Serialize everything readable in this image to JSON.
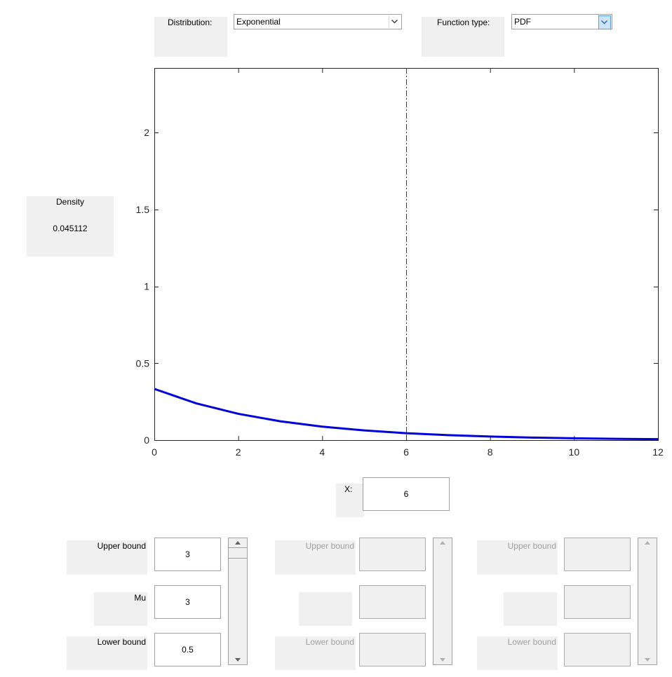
{
  "header": {
    "distribution_label": "Distribution:",
    "distribution_value": "Exponential",
    "function_type_label": "Function type:",
    "function_type_value": "PDF"
  },
  "readout": {
    "label": "Density",
    "value": "0.045112"
  },
  "x_control": {
    "label": "X:",
    "value": "6"
  },
  "params": [
    {
      "upper_label": "Upper bound",
      "upper_value": "3",
      "name_label": "Mu",
      "name_value": "3",
      "lower_label": "Lower bound",
      "lower_value": "0.5",
      "enabled": true,
      "slider_level": 1.0
    },
    {
      "upper_label": "Upper bound",
      "upper_value": "",
      "name_label": "",
      "name_value": "",
      "lower_label": "Lower bound",
      "lower_value": "",
      "enabled": false
    },
    {
      "upper_label": "Upper bound",
      "upper_value": "",
      "name_label": "",
      "name_value": "",
      "lower_label": "Lower bound",
      "lower_value": "",
      "enabled": false
    }
  ],
  "colors": {
    "curve": "#0000dd",
    "cursor_line": "#cc0000",
    "panel_gray": "#f0f0f0"
  },
  "chart_data": {
    "type": "line",
    "title": "",
    "xlabel": "",
    "ylabel": "",
    "xlim": [
      0,
      12
    ],
    "ylim": [
      0,
      2.42
    ],
    "xticks": [
      0,
      2,
      4,
      6,
      8,
      10,
      12
    ],
    "yticks": [
      0,
      0.5,
      1,
      1.5,
      2
    ],
    "xtick_labels": [
      "0",
      "2",
      "4",
      "6",
      "8",
      "10",
      "12"
    ],
    "ytick_labels": [
      "0",
      "0.5",
      "1",
      "1.5",
      "2"
    ],
    "grid": false,
    "series": [
      {
        "x": [
          0,
          1,
          2,
          3,
          4,
          5,
          6,
          7,
          8,
          9,
          10,
          11,
          12
        ],
        "y": [
          0.3333,
          0.2388,
          0.1711,
          0.1226,
          0.0879,
          0.063,
          0.0451,
          0.0323,
          0.0232,
          0.0166,
          0.0119,
          0.0085,
          0.0061
        ]
      }
    ],
    "cursor_x": 6
  }
}
